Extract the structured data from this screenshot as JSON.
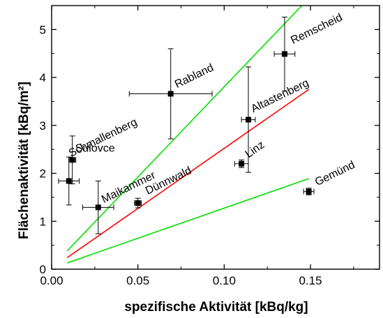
{
  "chart_data": {
    "type": "scatter",
    "xlabel": "spezifische Aktivität [kBq/kg]",
    "ylabel": "Flächenaktivität [kBq/m²]",
    "xlim": [
      0.0,
      0.19
    ],
    "ylim": [
      0,
      5.5
    ],
    "x_ticks": [
      0.0,
      0.05,
      0.1,
      0.15
    ],
    "x_tick_labels": [
      "0.00",
      "0.05",
      "0.10",
      "0.15"
    ],
    "y_ticks": [
      0,
      1,
      2,
      3,
      4,
      5
    ],
    "y_tick_labels": [
      "0",
      "1",
      "2",
      "3",
      "4",
      "5"
    ],
    "grid": false,
    "points": [
      {
        "label": "Sulovce",
        "x": 0.01,
        "y": 1.84,
        "xerr": 0.006,
        "yerr": 0.5
      },
      {
        "label": "Schmallenberg",
        "x": 0.012,
        "y": 2.28,
        "xerr": 0.002,
        "yerr": 0.5
      },
      {
        "label": "Maikammer",
        "x": 0.027,
        "y": 1.29,
        "xerr": 0.009,
        "yerr": 0.55
      },
      {
        "label": "Dünnwald",
        "x": 0.05,
        "y": 1.38,
        "xerr": 0.002,
        "yerr": 0.1
      },
      {
        "label": "Rabland",
        "x": 0.069,
        "y": 3.66,
        "xerr": 0.024,
        "yerr": 0.94
      },
      {
        "label": "Linz",
        "x": 0.11,
        "y": 2.2,
        "xerr": 0.004,
        "yerr": 0.08
      },
      {
        "label": "Altastenberg",
        "x": 0.114,
        "y": 3.12,
        "xerr": 0.004,
        "yerr": 1.1
      },
      {
        "label": "Remscheid",
        "x": 0.135,
        "y": 4.49,
        "xerr": 0.006,
        "yerr": 0.77
      },
      {
        "label": "Gemünd",
        "x": 0.149,
        "y": 1.62,
        "xerr": 0.003,
        "yerr": 0.07
      }
    ],
    "lines": [
      {
        "color": "#00e000",
        "x": [
          0.009,
          0.145
        ],
        "y": [
          0.38,
          5.5
        ]
      },
      {
        "color": "#ff0000",
        "x": [
          0.009,
          0.149
        ],
        "y": [
          0.24,
          3.75
        ]
      },
      {
        "color": "#00e000",
        "x": [
          0.009,
          0.149
        ],
        "y": [
          0.13,
          1.89
        ]
      }
    ]
  }
}
